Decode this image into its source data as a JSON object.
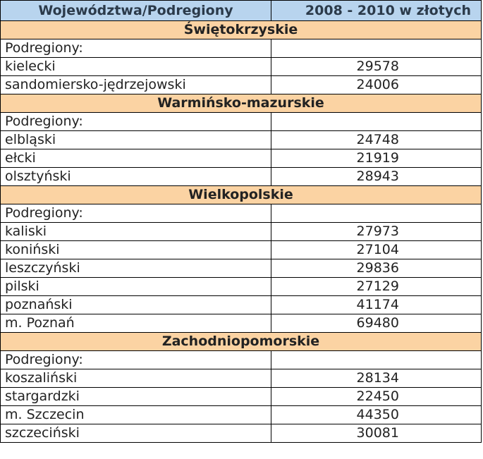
{
  "header": {
    "col1": "Województwa/Podregiony",
    "col2": "2008 - 2010  w złotych"
  },
  "groups": [
    {
      "name": "Świętokrzyskie",
      "sub_label": "Podregiony:",
      "rows": [
        {
          "name": "kielecki",
          "value": "29578"
        },
        {
          "name": "sandomiersko-jędrzejowski",
          "value": "24006"
        }
      ]
    },
    {
      "name": "Warmińsko-mazurskie",
      "sub_label": "Podregiony:",
      "rows": [
        {
          "name": "elbląski",
          "value": "24748"
        },
        {
          "name": "ełcki",
          "value": "21919"
        },
        {
          "name": "olsztyński",
          "value": "28943"
        }
      ]
    },
    {
      "name": "Wielkopolskie",
      "sub_label": "Podregiony:",
      "rows": [
        {
          "name": "kaliski",
          "value": "27973"
        },
        {
          "name": "koniński",
          "value": "27104"
        },
        {
          "name": "leszczyński",
          "value": "29836"
        },
        {
          "name": "pilski",
          "value": "27129"
        },
        {
          "name": "poznański",
          "value": "41174"
        },
        {
          "name": "m. Poznań",
          "value": "69480"
        }
      ]
    },
    {
      "name": "Zachodniopomorskie",
      "sub_label": "Podregiony:",
      "rows": [
        {
          "name": "koszaliński",
          "value": "28134"
        },
        {
          "name": "stargardzki",
          "value": "22450"
        },
        {
          "name": "m. Szczecin",
          "value": "44350"
        },
        {
          "name": "szczeciński",
          "value": "30081"
        }
      ]
    }
  ],
  "colors": {
    "header_bg": "#b8d4ee",
    "region_bg": "#fbd3a3",
    "border": "#000000"
  }
}
